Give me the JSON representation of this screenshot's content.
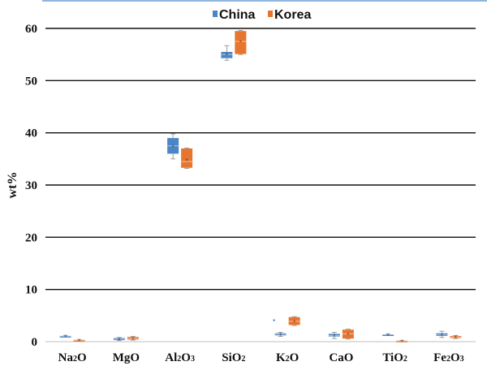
{
  "chart_data": {
    "type": "box",
    "title": "",
    "xlabel": "",
    "ylabel": "wt%",
    "ylim": [
      0,
      60
    ],
    "yticks": [
      "0",
      "10",
      "20",
      "30",
      "40",
      "50",
      "60"
    ],
    "categories": [
      {
        "base": "Na",
        "sub": "2",
        "tail": "O"
      },
      {
        "base": "MgO",
        "sub": "",
        "tail": ""
      },
      {
        "base": "Al",
        "sub": "2",
        "tail": "O",
        "sub2": "3"
      },
      {
        "base": "SiO",
        "sub": "2",
        "tail": ""
      },
      {
        "base": "K",
        "sub": "2",
        "tail": "O"
      },
      {
        "base": "CaO",
        "sub": "",
        "tail": ""
      },
      {
        "base": "TiO",
        "sub": "2",
        "tail": ""
      },
      {
        "base": "Fe",
        "sub": "2",
        "tail": "O",
        "sub2": "3"
      }
    ],
    "legend": {
      "position": "top-center"
    },
    "series": [
      {
        "name": "China",
        "color": "#4a86c5",
        "boxes": [
          {
            "min": 0.9,
            "q1": 1.0,
            "median": 1.05,
            "q3": 1.1,
            "max": 1.2,
            "mean": 1.05
          },
          {
            "min": 0.2,
            "q1": 0.3,
            "median": 0.5,
            "q3": 0.7,
            "max": 0.8,
            "mean": 0.5
          },
          {
            "min": 35.0,
            "q1": 36.0,
            "median": 37.5,
            "q3": 39.0,
            "max": 39.8,
            "mean": 37.5
          },
          {
            "min": 53.9,
            "q1": 54.3,
            "median": 55.0,
            "q3": 55.5,
            "max": 56.7,
            "mean": 55.0
          },
          {
            "min": 1.0,
            "q1": 1.2,
            "median": 1.4,
            "q3": 1.6,
            "max": 1.8,
            "mean": 1.4,
            "outliers": [
              4.1
            ]
          },
          {
            "min": 0.6,
            "q1": 1.0,
            "median": 1.2,
            "q3": 1.5,
            "max": 1.8,
            "mean": 1.2
          },
          {
            "min": 1.2,
            "q1": 1.3,
            "median": 1.35,
            "q3": 1.4,
            "max": 1.5,
            "mean": 1.35
          },
          {
            "min": 0.8,
            "q1": 1.1,
            "median": 1.3,
            "q3": 1.6,
            "max": 2.0,
            "mean": 1.3
          }
        ]
      },
      {
        "name": "Korea",
        "color": "#e8752e",
        "boxes": [
          {
            "min": 0.1,
            "q1": 0.2,
            "median": 0.3,
            "q3": 0.35,
            "max": 0.4,
            "mean": 0.3
          },
          {
            "min": 0.3,
            "q1": 0.4,
            "median": 0.6,
            "q3": 0.9,
            "max": 1.0,
            "mean": 0.6
          },
          {
            "min": 33.2,
            "q1": 33.3,
            "median": 34.5,
            "q3": 37.0,
            "max": 37.1,
            "mean": 34.8
          },
          {
            "min": 55.0,
            "q1": 55.1,
            "median": 57.5,
            "q3": 59.5,
            "max": 59.6,
            "mean": 57.5
          },
          {
            "min": 3.1,
            "q1": 3.2,
            "median": 3.9,
            "q3": 4.7,
            "max": 4.8,
            "mean": 3.9
          },
          {
            "min": 0.5,
            "q1": 0.6,
            "median": 1.5,
            "q3": 2.3,
            "max": 2.4,
            "mean": 1.5
          },
          {
            "min": 0.05,
            "q1": 0.1,
            "median": 0.15,
            "q3": 0.2,
            "max": 0.25,
            "mean": 0.15
          },
          {
            "min": 0.6,
            "q1": 0.7,
            "median": 0.9,
            "q3": 1.1,
            "max": 1.2,
            "mean": 0.9
          }
        ]
      }
    ]
  }
}
